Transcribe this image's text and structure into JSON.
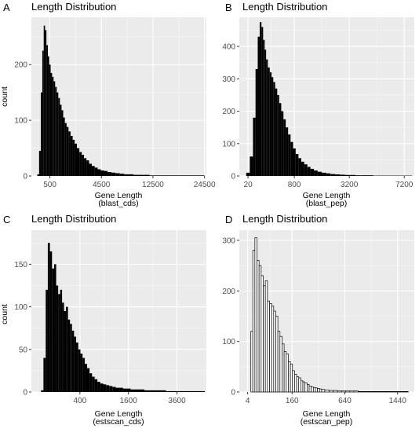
{
  "figure": {
    "panels": [
      "A",
      "B",
      "C",
      "D"
    ]
  },
  "chart_data": [
    {
      "panel": "A",
      "type": "bar",
      "title": "Length Distribution",
      "xlabel": "Gene Length",
      "xlabel_sub": "(blast_cds)",
      "ylabel": "count",
      "x_scale": "sqrt",
      "xlim": [
        40,
        25000
      ],
      "ylim": [
        0,
        285
      ],
      "x_ticks": [
        500,
        4500,
        12500,
        24500
      ],
      "x_tick_labels": [
        "500",
        "4500",
        "12500",
        "24500"
      ],
      "y_ticks": [
        0,
        100,
        200
      ],
      "y_tick_labels": [
        "0",
        "100",
        "200"
      ],
      "grid": true,
      "bar_fill": "#000000",
      "background": "#ebebeb",
      "x": [
        150,
        190,
        230,
        270,
        310,
        350,
        400,
        450,
        500,
        560,
        620,
        690,
        760,
        840,
        920,
        1010,
        1100,
        1200,
        1300,
        1420,
        1550,
        1700,
        1850,
        2000,
        2200,
        2400,
        2600,
        2800,
        3050,
        3300,
        3600,
        3900,
        4250,
        4600,
        5000,
        5500,
        6000,
        6600,
        7200,
        7900,
        8600,
        9400,
        10300,
        11300,
        12400,
        13600,
        15000,
        16500,
        18000,
        19800,
        21600,
        23500
      ],
      "values": [
        3,
        45,
        150,
        225,
        270,
        262,
        235,
        215,
        200,
        185,
        178,
        170,
        160,
        150,
        140,
        128,
        118,
        105,
        95,
        88,
        80,
        72,
        65,
        58,
        50,
        43,
        38,
        32,
        28,
        22,
        18,
        15,
        12,
        10,
        9,
        7,
        6,
        5,
        4,
        3,
        3,
        2,
        2,
        2,
        1,
        1,
        1,
        1,
        1,
        1,
        1,
        1
      ]
    },
    {
      "panel": "B",
      "type": "bar",
      "title": "Length Distribution",
      "xlabel": "Gene Length",
      "xlabel_sub": "(blast_pep)",
      "ylabel": "",
      "x_scale": "sqrt",
      "xlim": [
        0,
        8100
      ],
      "ylim": [
        0,
        490
      ],
      "x_ticks": [
        20,
        800,
        3200,
        7200
      ],
      "x_tick_labels": [
        "20",
        "800",
        "3200",
        "7200"
      ],
      "y_ticks": [
        0,
        100,
        200,
        300,
        400
      ],
      "y_tick_labels": [
        "0",
        "100",
        "200",
        "300",
        "400"
      ],
      "grid": true,
      "bar_fill": "#000000",
      "background": "#ebebeb",
      "x": [
        20,
        40,
        60,
        80,
        100,
        120,
        140,
        160,
        180,
        200,
        230,
        260,
        290,
        320,
        360,
        400,
        440,
        490,
        540,
        600,
        660,
        730,
        800,
        880,
        970,
        1060,
        1170,
        1280,
        1400,
        1550,
        1700,
        1900,
        2100,
        2300,
        2550,
        2800,
        3100,
        3400,
        3750,
        4100,
        4500,
        5000,
        5500,
        6000,
        6500,
        7000,
        7600
      ],
      "values": [
        10,
        60,
        180,
        330,
        430,
        475,
        460,
        420,
        390,
        360,
        335,
        320,
        305,
        290,
        270,
        250,
        225,
        200,
        175,
        150,
        128,
        105,
        85,
        68,
        55,
        44,
        36,
        28,
        22,
        17,
        13,
        10,
        8,
        6,
        5,
        4,
        3,
        3,
        2,
        2,
        2,
        1,
        1,
        1,
        1,
        1,
        1
      ]
    },
    {
      "panel": "C",
      "type": "bar",
      "title": "Length Distribution",
      "xlabel": "Gene Length",
      "xlabel_sub": "(estscan_cds)",
      "ylabel": "count",
      "x_scale": "sqrt",
      "xlim": [
        0,
        5200
      ],
      "ylim": [
        0,
        190
      ],
      "x_ticks": [
        400,
        1600,
        3600
      ],
      "x_tick_labels": [
        "400",
        "1600",
        "3600"
      ],
      "y_ticks": [
        0,
        50,
        100,
        150
      ],
      "y_tick_labels": [
        "0",
        "50",
        "100",
        "150"
      ],
      "grid": true,
      "bar_fill": "#000000",
      "background": "#ebebeb",
      "x": [
        20,
        30,
        40,
        52,
        65,
        80,
        96,
        113,
        131,
        150,
        170,
        192,
        215,
        240,
        266,
        294,
        324,
        356,
        390,
        426,
        464,
        505,
        550,
        600,
        650,
        710,
        770,
        840,
        910,
        990,
        1070,
        1160,
        1260,
        1370,
        1480,
        1600,
        1750,
        1900,
        2080,
        2270,
        2480,
        2700,
        2950,
        3200,
        3500,
        3800,
        4150,
        4500,
        4900
      ],
      "values": [
        2,
        40,
        120,
        175,
        165,
        145,
        150,
        125,
        115,
        120,
        105,
        95,
        100,
        85,
        80,
        72,
        65,
        58,
        50,
        45,
        40,
        33,
        28,
        22,
        18,
        15,
        12,
        10,
        9,
        8,
        7,
        6,
        5,
        5,
        4,
        4,
        3,
        3,
        3,
        2,
        2,
        2,
        2,
        1,
        1,
        1,
        1,
        1,
        1
      ]
    },
    {
      "panel": "D",
      "type": "bar",
      "title": "Length Distribution",
      "xlabel": "Gene Length",
      "xlabel_sub": "(estscan_pep)",
      "ylabel": "",
      "x_scale": "sqrt",
      "xlim": [
        0,
        1760
      ],
      "ylim": [
        0,
        320
      ],
      "x_ticks": [
        4,
        160,
        640,
        1440
      ],
      "x_tick_labels": [
        "4",
        "160",
        "640",
        "1440"
      ],
      "y_ticks": [
        0,
        100,
        200,
        300
      ],
      "y_tick_labels": [
        "0",
        "100",
        "200",
        "300"
      ],
      "grid": true,
      "bar_fill": "#ffffff",
      "bar_stroke": "#000000",
      "background": "#ebebeb",
      "x": [
        9,
        12,
        16,
        20,
        25,
        30,
        36,
        42,
        49,
        56,
        64,
        72,
        81,
        90,
        100,
        110,
        121,
        132,
        144,
        156,
        169,
        182,
        196,
        210,
        225,
        240,
        256,
        272,
        289,
        306,
        324,
        342,
        361,
        380,
        400,
        441,
        484,
        529,
        576,
        625,
        676,
        729,
        784,
        841,
        900,
        961,
        1024,
        1089,
        1156,
        1225,
        1296,
        1369,
        1444,
        1521,
        1600
      ],
      "values": [
        120,
        280,
        305,
        260,
        250,
        230,
        210,
        220,
        180,
        175,
        170,
        160,
        150,
        120,
        110,
        95,
        80,
        75,
        60,
        55,
        42,
        35,
        30,
        28,
        22,
        20,
        18,
        15,
        12,
        10,
        9,
        8,
        7,
        6,
        5,
        4,
        3,
        3,
        2,
        2,
        2,
        2,
        2,
        1,
        1,
        1,
        1,
        1,
        1,
        1,
        1,
        1,
        1,
        1,
        1
      ]
    }
  ]
}
